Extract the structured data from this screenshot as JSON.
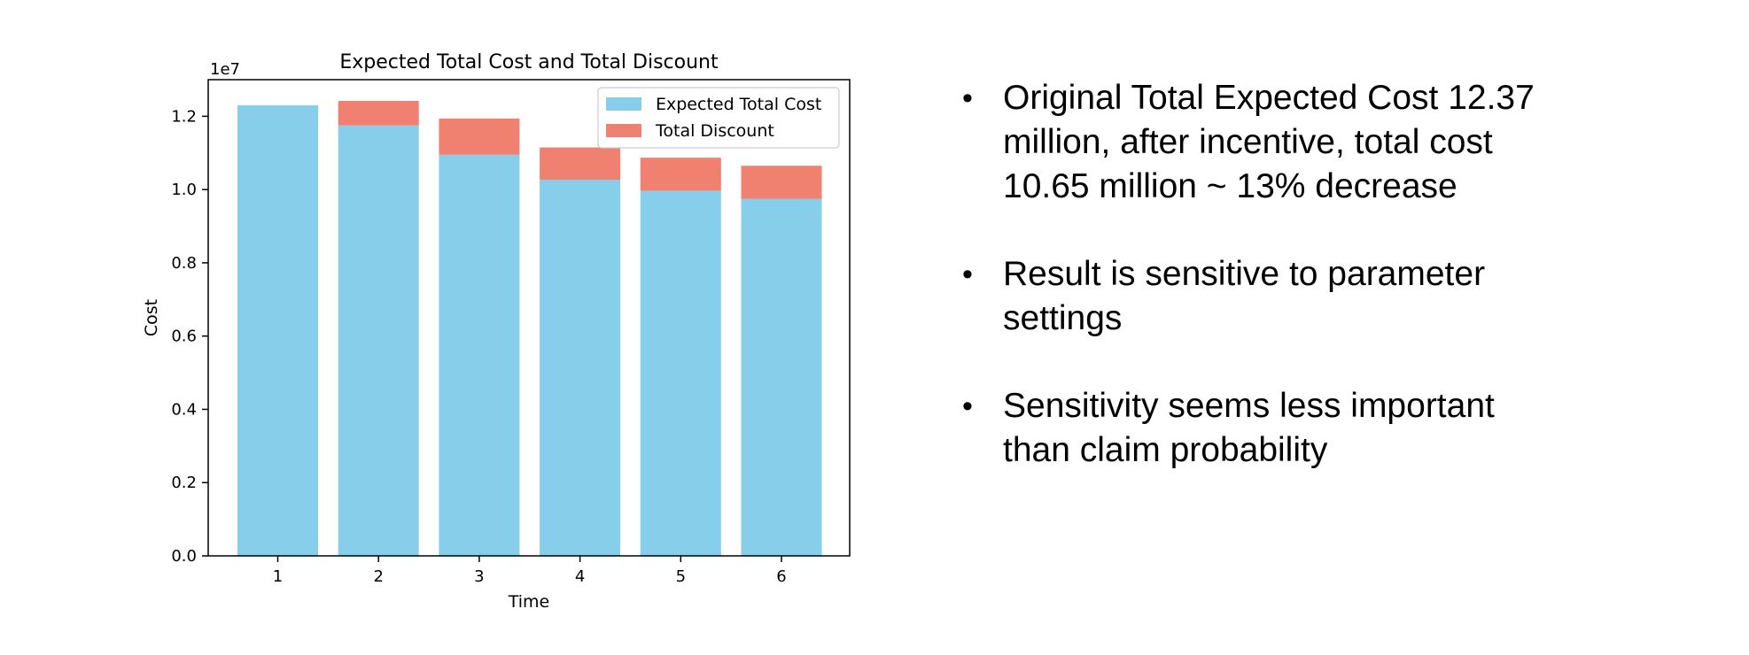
{
  "chart_data": {
    "type": "bar",
    "stacked": true,
    "title": "Expected Total Cost and Total Discount",
    "xlabel": "Time",
    "ylabel": "Cost",
    "y_scale_label": "1e7",
    "categories": [
      "1",
      "2",
      "3",
      "4",
      "5",
      "6"
    ],
    "series": [
      {
        "name": "Expected Total Cost",
        "color": "#87ceeb",
        "values": [
          12300000,
          11750000,
          10950000,
          10270000,
          9970000,
          9750000
        ]
      },
      {
        "name": "Total Discount",
        "color": "#f08070",
        "values": [
          0,
          670000,
          990000,
          880000,
          900000,
          900000
        ]
      }
    ],
    "ylim": [
      0,
      13000000
    ],
    "y_ticks": [
      0,
      2000000,
      4000000,
      6000000,
      8000000,
      10000000,
      12000000
    ],
    "y_tick_labels": [
      "0.0",
      "0.2",
      "0.4",
      "0.6",
      "0.8",
      "1.0",
      "1.2"
    ],
    "grid": false,
    "legend_position": "top-right"
  },
  "bullets": [
    "Original Total Expected Cost 12.37 million, after incentive, total cost 10.65 million ~ 13% decrease",
    "Result is sensitive to parameter settings",
    "Sensitivity seems less important than claim probability"
  ],
  "bullet_symbol": "•"
}
